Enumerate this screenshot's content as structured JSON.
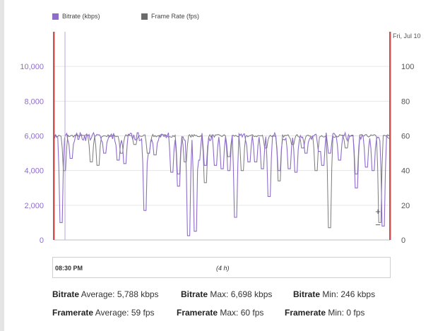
{
  "legend": {
    "bitrate_label": "Bitrate (kbps)",
    "framerate_label": "Frame Rate (fps)",
    "bitrate_color": "#8e6cc9",
    "framerate_color": "#6b6b6b"
  },
  "chart_data": {
    "type": "line",
    "right_marker_label": "Fri, Jul 10",
    "left_axis": {
      "ticks": [
        "0",
        "2,000",
        "4,000",
        "6,000",
        "8,000",
        "10,000"
      ],
      "range": [
        0,
        12000
      ]
    },
    "right_axis": {
      "ticks": [
        "0",
        "20",
        "40",
        "60",
        "80",
        "100"
      ],
      "range": [
        0,
        120
      ]
    },
    "grid": true,
    "series": [
      {
        "name": "Bitrate (kbps)",
        "axis": "left",
        "color": "#8e6cc9",
        "baseline": 5950,
        "dips": [
          [
            0.02,
            1000
          ],
          [
            0.05,
            4700
          ],
          [
            0.15,
            5000
          ],
          [
            0.19,
            4600
          ],
          [
            0.21,
            4400
          ],
          [
            0.27,
            1700
          ],
          [
            0.28,
            5000
          ],
          [
            0.3,
            4900
          ],
          [
            0.35,
            3900
          ],
          [
            0.37,
            3100
          ],
          [
            0.4,
            250
          ],
          [
            0.42,
            500
          ],
          [
            0.43,
            4600
          ],
          [
            0.45,
            4300
          ],
          [
            0.48,
            4300
          ],
          [
            0.5,
            4100
          ],
          [
            0.52,
            4000
          ],
          [
            0.54,
            1300
          ],
          [
            0.58,
            4500
          ],
          [
            0.6,
            4500
          ],
          [
            0.62,
            4100
          ],
          [
            0.64,
            2500
          ],
          [
            0.67,
            4000
          ],
          [
            0.7,
            4100
          ],
          [
            0.72,
            3900
          ],
          [
            0.75,
            5000
          ],
          [
            0.79,
            5100
          ],
          [
            0.8,
            4300
          ],
          [
            0.82,
            5000
          ],
          [
            0.85,
            4600
          ],
          [
            0.9,
            3000
          ],
          [
            0.93,
            4200
          ],
          [
            0.95,
            4000
          ],
          [
            0.98,
            800
          ]
        ]
      },
      {
        "name": "Frame Rate (fps)",
        "axis": "right",
        "color": "#6b6b6b",
        "baseline": 60,
        "dips": [
          [
            0.03,
            40
          ],
          [
            0.11,
            45
          ],
          [
            0.13,
            43
          ],
          [
            0.2,
            50
          ],
          [
            0.24,
            55
          ],
          [
            0.28,
            50
          ],
          [
            0.37,
            38
          ],
          [
            0.39,
            45
          ],
          [
            0.45,
            33
          ],
          [
            0.52,
            48
          ],
          [
            0.56,
            40
          ],
          [
            0.63,
            53
          ],
          [
            0.67,
            34
          ],
          [
            0.71,
            55
          ],
          [
            0.74,
            53
          ],
          [
            0.78,
            40
          ],
          [
            0.82,
            7
          ],
          [
            0.87,
            53
          ],
          [
            0.9,
            38
          ],
          [
            0.97,
            10
          ]
        ]
      }
    ],
    "zoom_in_label": "+",
    "zoom_out_label": "−"
  },
  "timeline": {
    "start_label": "08:30 PM",
    "range_label": "(4 h)"
  },
  "stats": {
    "bitrate_label": "Bitrate",
    "framerate_label": "Framerate",
    "average_text": "Average: 5,788 kbps",
    "max_text": "Max: 6,698 kbps",
    "min_text": "Min: 246 kbps",
    "fr_average_text": "Average: 59 fps",
    "fr_max_text": "Max: 60 fps",
    "fr_min_text": "Min: 0 fps"
  }
}
